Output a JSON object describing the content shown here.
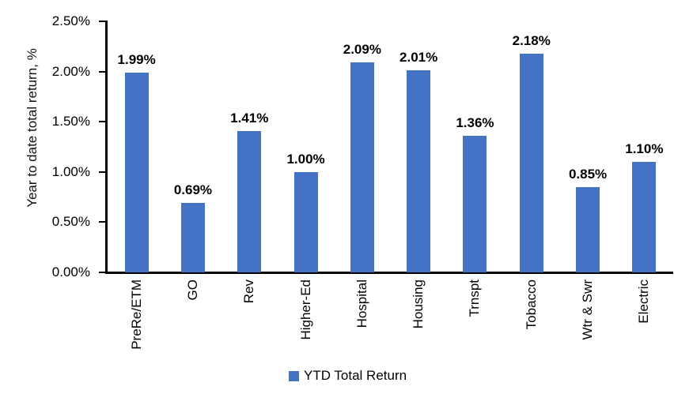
{
  "chart_data": {
    "type": "bar",
    "title": "",
    "ylabel": "Year to date total return, %",
    "xlabel": "",
    "categories": [
      "PreRe/ETM",
      "GO",
      "Rev",
      "Higher-Ed",
      "Hospital",
      "Housing",
      "Trnspt",
      "Tobacco",
      "Wtr & Swr",
      "Electric"
    ],
    "values": [
      1.99,
      0.69,
      1.41,
      1.0,
      2.09,
      2.01,
      1.36,
      2.18,
      0.85,
      1.1
    ],
    "value_labels": [
      "1.99%",
      "0.69%",
      "1.41%",
      "1.00%",
      "2.09%",
      "2.01%",
      "1.36%",
      "2.18%",
      "0.85%",
      "1.10%"
    ],
    "ytick_values": [
      0,
      0.5,
      1.0,
      1.5,
      2.0,
      2.5
    ],
    "ytick_labels": [
      "0.00%",
      "0.50%",
      "1.00%",
      "1.50%",
      "2.00%",
      "2.50%"
    ],
    "ylim": [
      0,
      2.5
    ],
    "grid": false,
    "bar_color": "#4472C4",
    "axis_color": "#000000",
    "legend_position": "bottom-center",
    "legend": [
      {
        "label": "YTD Total Return",
        "color": "#4472C4"
      }
    ]
  }
}
